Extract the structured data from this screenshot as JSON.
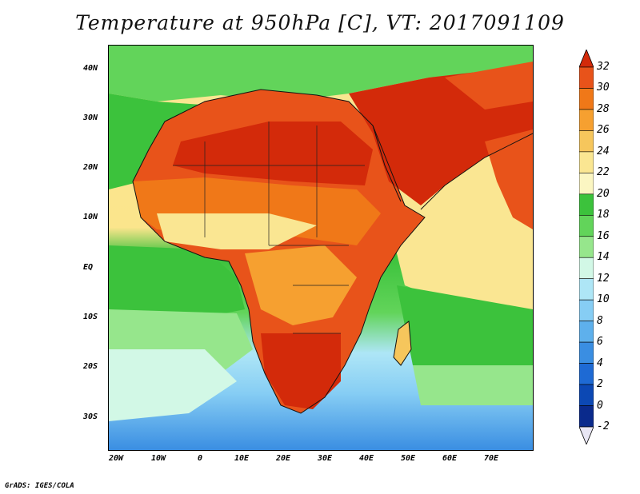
{
  "title": "Temperature at 950hPa [C], VT: 2017091109",
  "credit": "GrADS: IGES/COLA",
  "map": {
    "variable": "Temperature at 950hPa",
    "units": "C",
    "valid_time": "2017091109",
    "lat_ticks": [
      "40N",
      "30N",
      "20N",
      "10N",
      "EQ",
      "10S",
      "20S",
      "30S"
    ],
    "lon_ticks": [
      "20W",
      "10W",
      "0",
      "10E",
      "20E",
      "30E",
      "40E",
      "50E",
      "60E",
      "70E"
    ]
  },
  "colorbar": {
    "labels": [
      "32",
      "30",
      "28",
      "26",
      "24",
      "22",
      "20",
      "18",
      "16",
      "14",
      "12",
      "10",
      "8",
      "6",
      "4",
      "2",
      "0",
      "-2"
    ],
    "colors": [
      "#d32a0a",
      "#e8531a",
      "#f07818",
      "#f6a030",
      "#f6c65c",
      "#fae692",
      "#fbf6c2",
      "#3cc23c",
      "#62d45a",
      "#96e68c",
      "#d2f8e6",
      "#aee6f6",
      "#86cdf4",
      "#5eb0ec",
      "#3a8ee2",
      "#1e6ad4",
      "#0c48b4",
      "#0a2a8c",
      "#0a1660"
    ]
  }
}
